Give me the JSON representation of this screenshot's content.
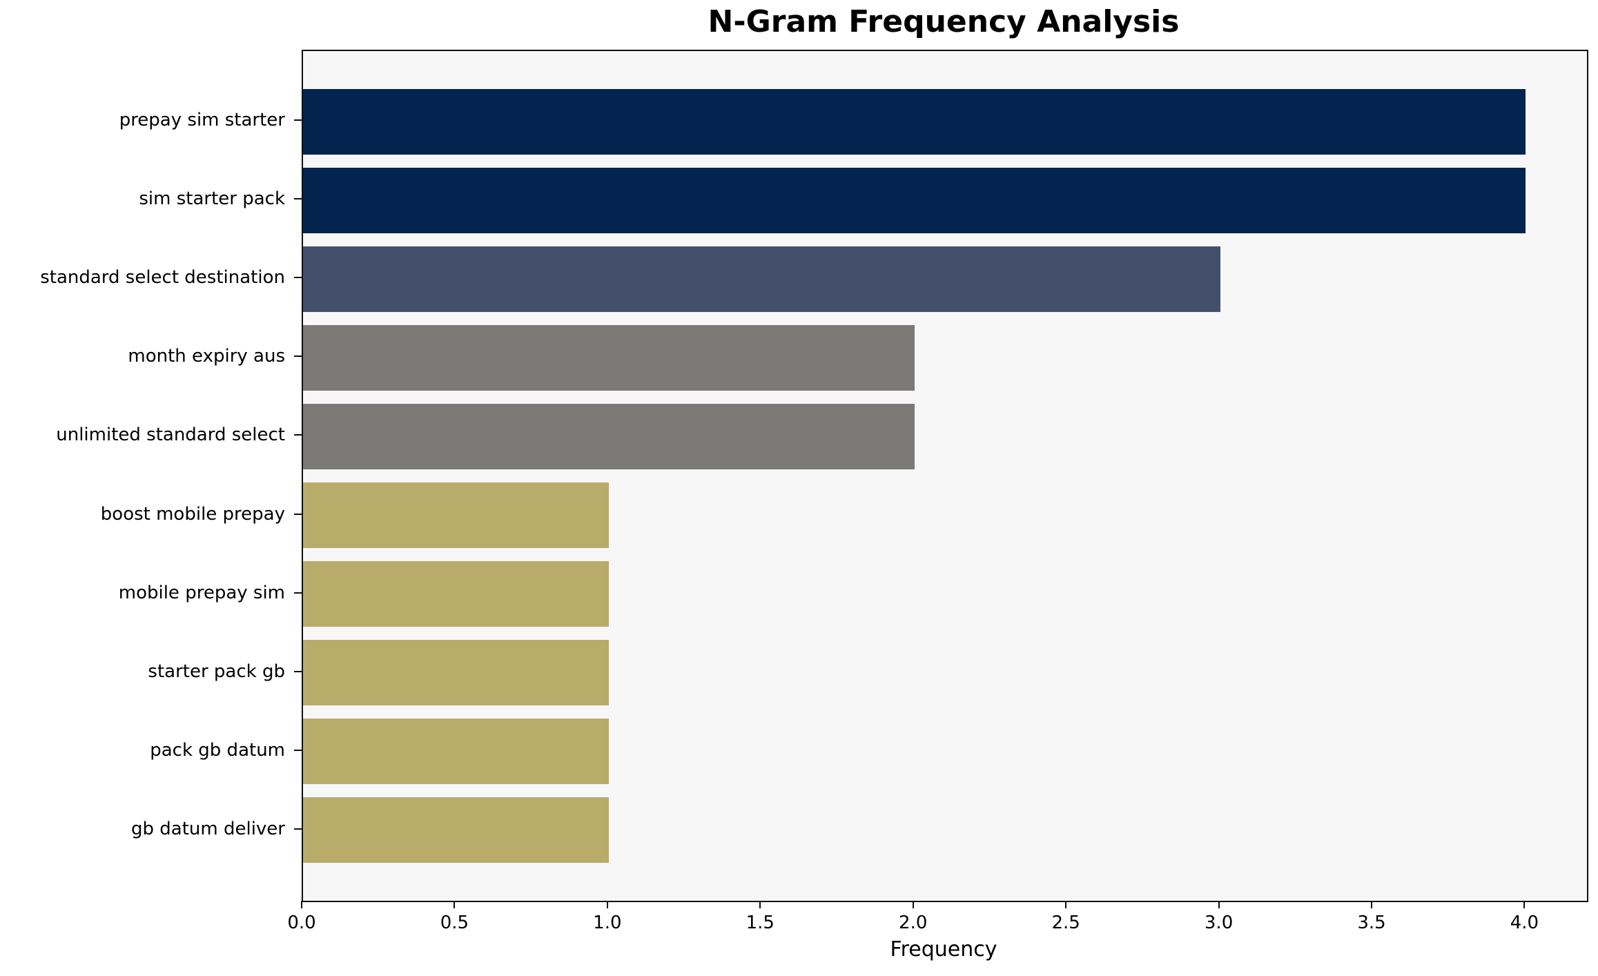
{
  "chart_data": {
    "type": "bar",
    "orientation": "horizontal",
    "title": "N-Gram Frequency Analysis",
    "xlabel": "Frequency",
    "ylabel": "",
    "categories": [
      "prepay sim starter",
      "sim starter pack",
      "standard select destination",
      "month expiry aus",
      "unlimited standard select",
      "boost mobile prepay",
      "mobile prepay sim",
      "starter pack gb",
      "pack gb datum",
      "gb datum deliver"
    ],
    "values": [
      4,
      4,
      3,
      2,
      2,
      1,
      1,
      1,
      1,
      1
    ],
    "bar_colors": [
      "#02244e",
      "#02244e",
      "#444f6b",
      "#7b7a76",
      "#7b7a76",
      "#b9ab6a",
      "#b9ab6a",
      "#b9ab6a",
      "#b9ab6a",
      "#b9ab6a"
    ],
    "xlim": [
      0,
      4.2
    ],
    "xticks": [
      0.0,
      0.5,
      1.0,
      1.5,
      2.0,
      2.5,
      3.0,
      3.5,
      4.0
    ],
    "xtick_labels": [
      "0.0",
      "0.5",
      "1.0",
      "1.5",
      "2.0",
      "2.5",
      "3.0",
      "3.5",
      "4.0"
    ],
    "grid": false,
    "legend": null,
    "plot_background": "#f7f7f7",
    "figure_background": "#ffffff"
  }
}
